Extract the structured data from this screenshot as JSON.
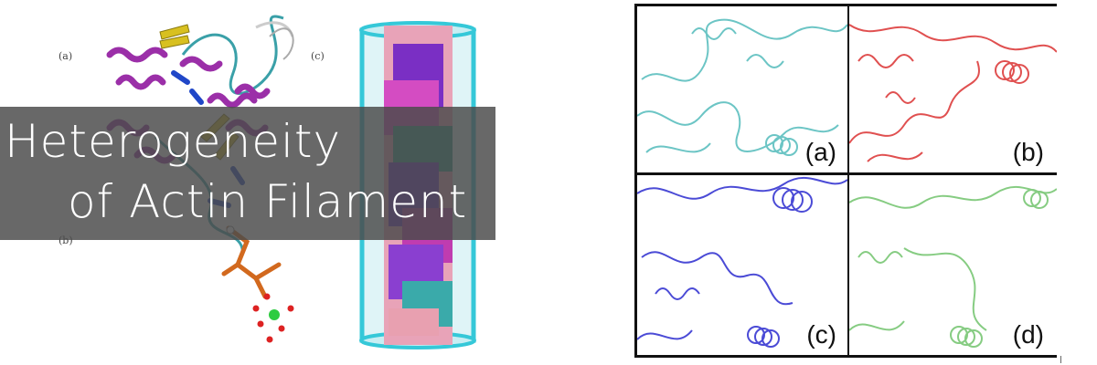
{
  "title": {
    "line1": "Heterogeneity",
    "line2": "of Actin Filament"
  },
  "left_figure": {
    "panel_labels": [
      "(a)",
      "(b)",
      "(c)"
    ]
  },
  "right_figure": {
    "panels": [
      {
        "label": "(a)",
        "color": "#6cc5c5"
      },
      {
        "label": "(b)",
        "color": "#e05050"
      },
      {
        "label": "(c)",
        "color": "#4b4bd6"
      },
      {
        "label": "(d)",
        "color": "#86cc82"
      }
    ]
  },
  "colors": {
    "helix_purple": "#9b2fa8",
    "sheet_yellow": "#d8c020",
    "strand_blue": "#2047c8",
    "coil_teal": "#3aa0a8",
    "phosphate_orange": "#d2691e",
    "ion_green": "#2ecc40",
    "water_red": "#d22",
    "box_cyan": "#35c8d8",
    "banner": "#4b4b4b"
  }
}
